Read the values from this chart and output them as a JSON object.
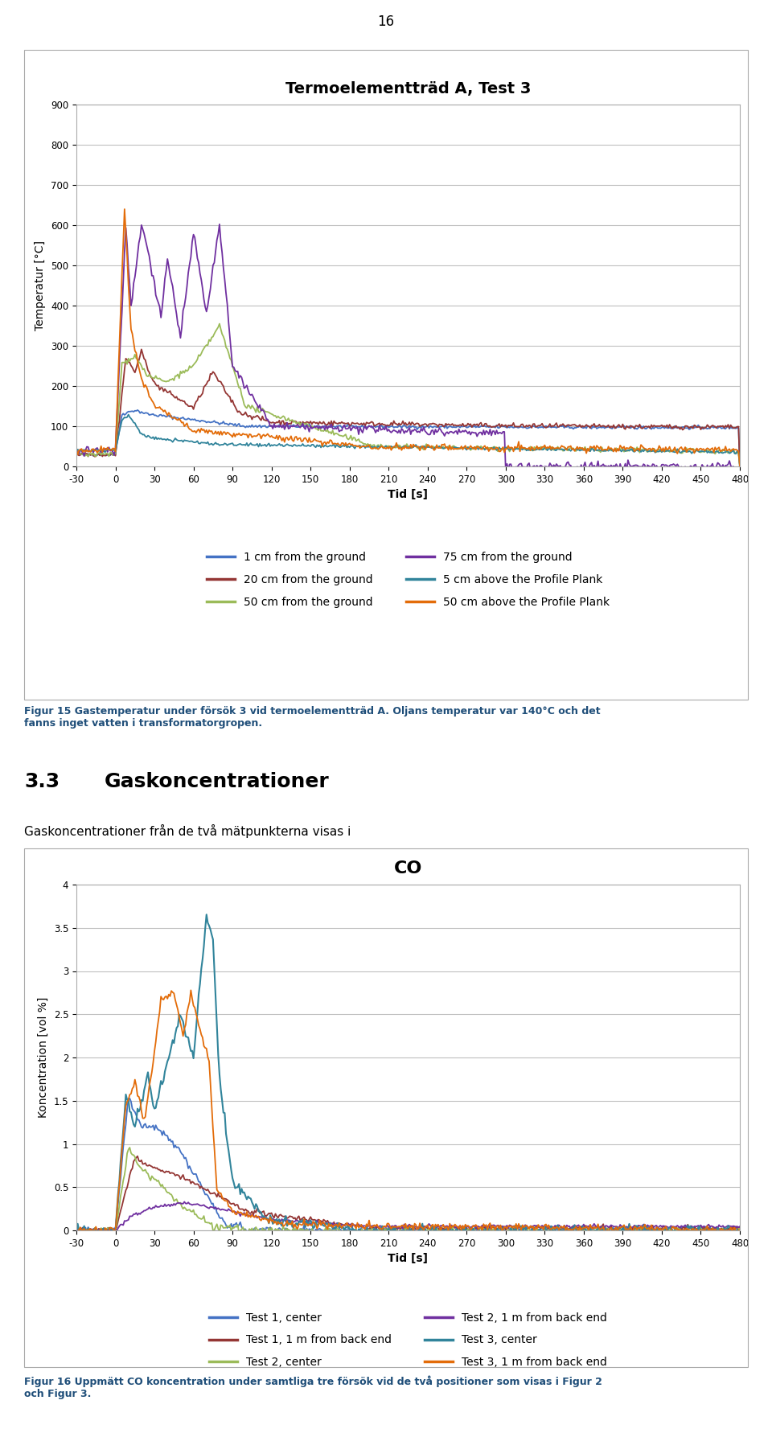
{
  "page_number": "16",
  "chart1": {
    "title": "Termoelementträd A, Test 3",
    "xlabel": "Tid [s]",
    "ylabel": "Temperatur [°C]",
    "xlim": [
      -30,
      480
    ],
    "ylim": [
      0,
      900
    ],
    "yticks": [
      0,
      100,
      200,
      300,
      400,
      500,
      600,
      700,
      800,
      900
    ],
    "xticks": [
      -30,
      0,
      30,
      60,
      90,
      120,
      150,
      180,
      210,
      240,
      270,
      300,
      330,
      360,
      390,
      420,
      450,
      480
    ],
    "legend": [
      {
        "label": "1 cm from the ground",
        "color": "#4472C4"
      },
      {
        "label": "20 cm from the ground",
        "color": "#943634"
      },
      {
        "label": "50 cm from the ground",
        "color": "#9BBB59"
      },
      {
        "label": "75 cm from the ground",
        "color": "#7030A0"
      },
      {
        "label": "5 cm above the Profile Plank",
        "color": "#31849B"
      },
      {
        "label": "50 cm above the Profile Plank",
        "color": "#E36C09"
      }
    ]
  },
  "chart2": {
    "title": "CO",
    "xlabel": "Tid [s]",
    "ylabel": "Koncentration [vol %]",
    "xlim": [
      -30,
      480
    ],
    "ylim": [
      0,
      4
    ],
    "yticks": [
      0,
      0.5,
      1,
      1.5,
      2,
      2.5,
      3,
      3.5,
      4
    ],
    "xticks": [
      -30,
      0,
      30,
      60,
      90,
      120,
      150,
      180,
      210,
      240,
      270,
      300,
      330,
      360,
      390,
      420,
      450,
      480
    ],
    "legend": [
      {
        "label": "Test 1, center",
        "color": "#4472C4"
      },
      {
        "label": "Test 1, 1 m from back end",
        "color": "#943634"
      },
      {
        "label": "Test 2, center",
        "color": "#9BBB59"
      },
      {
        "label": "Test 2, 1 m from back end",
        "color": "#7030A0"
      },
      {
        "label": "Test 3, center",
        "color": "#31849B"
      },
      {
        "label": "Test 3, 1 m from back end",
        "color": "#E36C09"
      }
    ]
  },
  "fig1_caption": "Figur 15 Gastemperatur under försök 3 vid termoelementtär A. Oljans temperatur var 140°C och det fanns inget vatten i transformatorgropen.",
  "fig2_caption": "Figur 16 Uppmätt CO koncentration under samtliga tre försök vid de två positioner som visas i Figur 2 och Figur 3.",
  "section_number": "3.3",
  "section_title": "Gaskoncentrationer",
  "section_text": "Gaskoncentrationer från de två mätpunkterna visas i",
  "bg_color": "#FFFFFF",
  "grid_color": "#BFBFBF",
  "border_color": "#AAAAAA"
}
